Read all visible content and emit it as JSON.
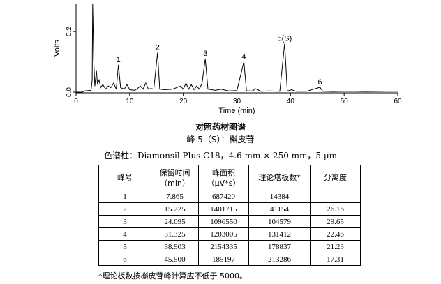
{
  "chart_data": {
    "type": "line",
    "xlabel": "Time (min)",
    "ylabel": "Volts",
    "xlim": [
      0,
      60
    ],
    "ylim": [
      0,
      0.29
    ],
    "xticks": [
      0,
      10,
      20,
      30,
      40,
      50,
      60
    ],
    "yticks": [
      0.0,
      0.2
    ],
    "ytick_labels": [
      "0.0",
      "0.2"
    ],
    "grid": false,
    "peaks": [
      {
        "label": "1",
        "time": 7.9,
        "height": 0.09
      },
      {
        "label": "2",
        "time": 15.2,
        "height": 0.13
      },
      {
        "label": "3",
        "time": 24.1,
        "height": 0.11
      },
      {
        "label": "4",
        "time": 31.3,
        "height": 0.1
      },
      {
        "label": "5(S)",
        "time": 38.9,
        "height": 0.16
      },
      {
        "label": "6",
        "time": 45.5,
        "height": 0.016
      }
    ],
    "series": [
      {
        "x": [
          0,
          1.2,
          1.5,
          2.8,
          3.0,
          3.1,
          3.3,
          3.5,
          3.8,
          4.0,
          4.3,
          4.6,
          5.0,
          5.5,
          6.0,
          6.5,
          7.0,
          7.5,
          7.9,
          8.3,
          9.0,
          9.5,
          10.0,
          11.0,
          12.0,
          12.5,
          13.0,
          13.5,
          14.0,
          14.5,
          15.2,
          15.6,
          16.5,
          18.0,
          19.5,
          20.0,
          20.5,
          21.0,
          21.5,
          22.0,
          22.5,
          23.0,
          23.5,
          24.1,
          24.6,
          26.0,
          27.0,
          28.5,
          30.0,
          31.3,
          31.8,
          33.0,
          33.4,
          34.5,
          36.0,
          38.0,
          38.9,
          39.4,
          40.2,
          41.0,
          43.0,
          45.5,
          46.0,
          48.0,
          50.0,
          54.0,
          58.0,
          60.0
        ],
        "y": [
          0.0,
          0.0,
          0.004,
          0.006,
          0.04,
          0.29,
          0.1,
          0.02,
          0.07,
          0.025,
          0.04,
          0.015,
          0.025,
          0.01,
          0.02,
          0.015,
          0.03,
          0.01,
          0.09,
          0.015,
          0.01,
          0.025,
          0.008,
          0.006,
          0.02,
          0.01,
          0.03,
          0.01,
          0.012,
          0.01,
          0.13,
          0.01,
          0.008,
          0.01,
          0.02,
          0.01,
          0.03,
          0.01,
          0.025,
          0.008,
          0.02,
          0.01,
          0.03,
          0.11,
          0.01,
          0.006,
          0.01,
          0.004,
          0.005,
          0.1,
          0.004,
          0.004,
          0.012,
          0.003,
          0.004,
          0.003,
          0.16,
          0.004,
          0.008,
          0.003,
          0.003,
          0.016,
          0.003,
          0.002,
          0.003,
          0.002,
          0.003,
          0.003
        ]
      }
    ]
  },
  "captions": {
    "main": "对照药材图谱",
    "sub": "峰 5（S）：槲皮苷",
    "column": "色谱柱：Diamonsil Plus C18，4.6 mm × 250 mm，5 μm"
  },
  "table": {
    "headers": [
      [
        "峰号"
      ],
      [
        "保留时间",
        "（min）"
      ],
      [
        "峰面积",
        "（μV*s）"
      ],
      [
        "理论塔板数*"
      ],
      [
        "分离度"
      ]
    ],
    "rows": [
      [
        "1",
        "7.865",
        "687420",
        "14384",
        "--"
      ],
      [
        "2",
        "15.225",
        "1401715",
        "41154",
        "26.16"
      ],
      [
        "3",
        "24.095",
        "1096550",
        "104579",
        "29.65"
      ],
      [
        "4",
        "31.325",
        "1203005",
        "131412",
        "22.46"
      ],
      [
        "5",
        "38.903",
        "2154335",
        "178837",
        "21.23"
      ],
      [
        "6",
        "45.500",
        "185197",
        "213286",
        "17.31"
      ]
    ]
  },
  "footnote": "*理论板数按槲皮苷峰计算应不低于 5000。"
}
